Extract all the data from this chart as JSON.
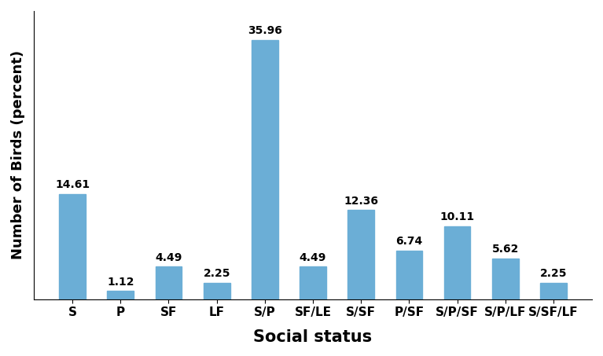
{
  "categories": [
    "S",
    "P",
    "SF",
    "LF",
    "S/P",
    "SF/LE",
    "S/SF",
    "P/SF",
    "S/P/SF",
    "S/P/LF",
    "S/SF/LF"
  ],
  "values": [
    14.61,
    1.12,
    4.49,
    2.25,
    35.96,
    4.49,
    12.36,
    6.74,
    10.11,
    5.62,
    2.25
  ],
  "bar_color": "#6baed6",
  "xlabel": "Social status",
  "ylabel": "Number of Birds (percent)",
  "xlabel_fontsize": 15,
  "ylabel_fontsize": 13,
  "xtick_fontsize": 11,
  "label_fontsize": 10,
  "background_color": "#ffffff",
  "ylim": [
    0,
    40
  ],
  "bar_width": 0.55
}
